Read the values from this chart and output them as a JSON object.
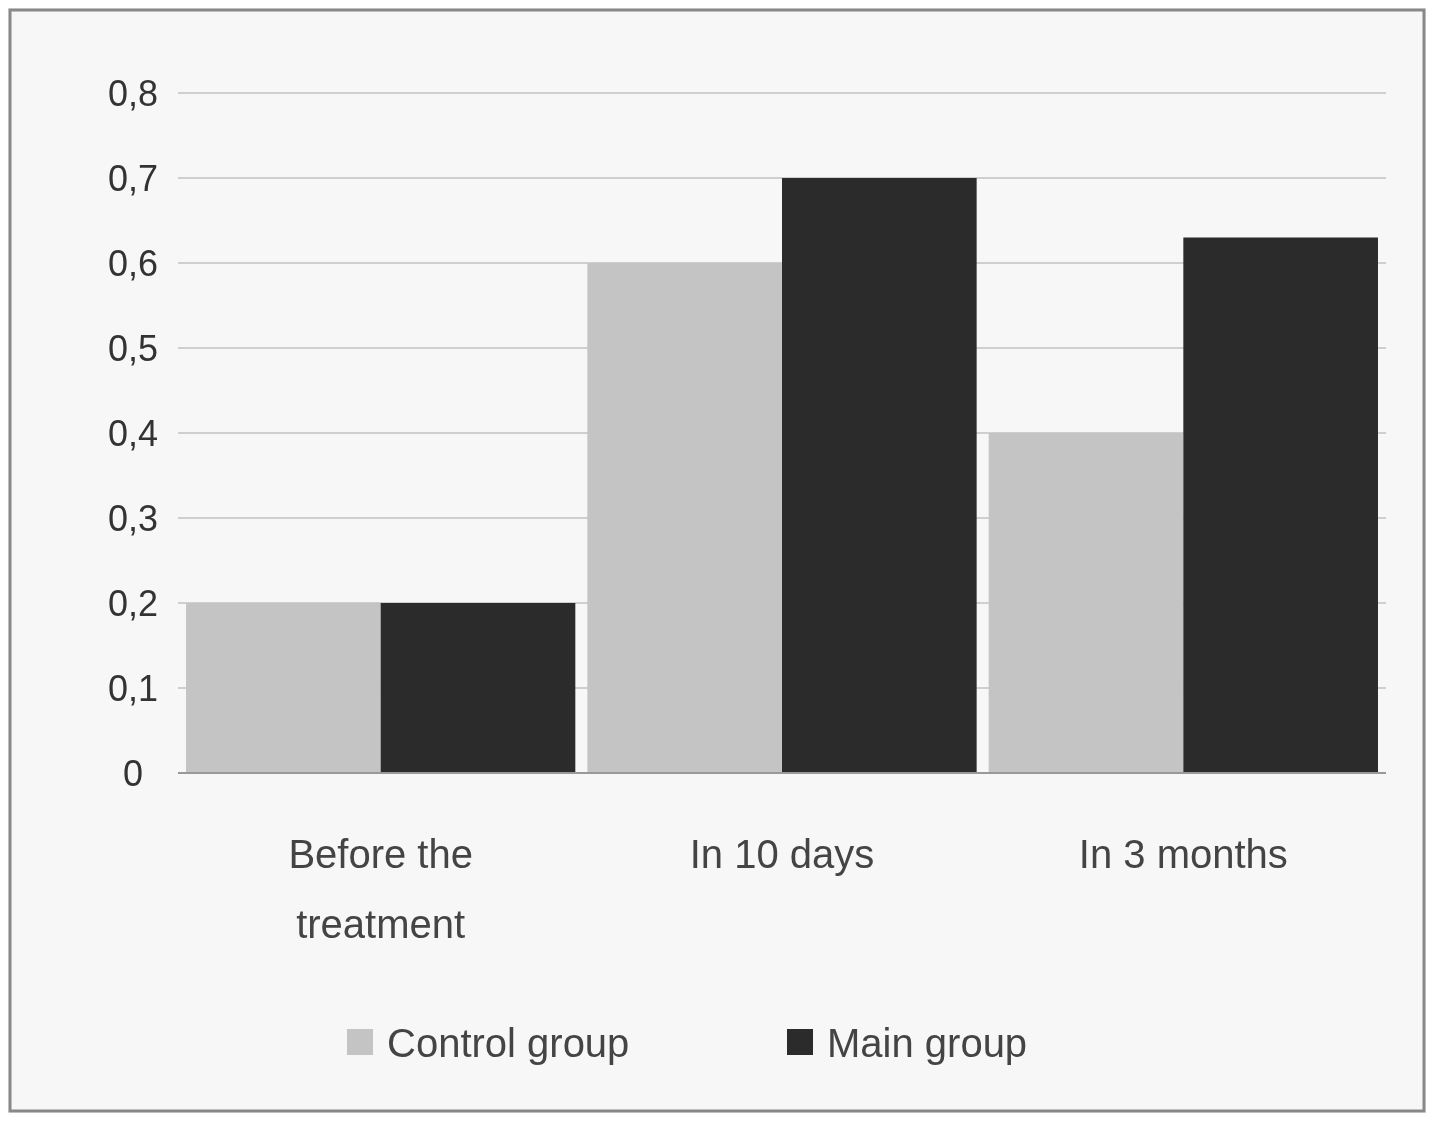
{
  "chart_data": {
    "type": "bar",
    "categories": [
      "Before the treatment",
      "In 10 days",
      "In 3 months"
    ],
    "series": [
      {
        "name": "Control group",
        "color": "#c4c4c4",
        "values": [
          0.2,
          0.6,
          0.4
        ]
      },
      {
        "name": "Main group",
        "color": "#2b2b2b",
        "values": [
          0.2,
          0.7,
          0.63
        ]
      }
    ],
    "ylim": [
      0,
      0.8
    ],
    "yticks": [
      0,
      {
        "value": 0.1,
        "label": "0,1"
      },
      {
        "value": 0.2,
        "label": "0,2"
      },
      {
        "value": 0.3,
        "label": "0,3"
      },
      {
        "value": 0.4,
        "label": "0,4"
      },
      {
        "value": 0.5,
        "label": "0,5"
      },
      {
        "value": 0.6,
        "label": "0,6"
      },
      {
        "value": 0.7,
        "label": "0,7"
      },
      {
        "value": 0.8,
        "label": "0,8"
      }
    ],
    "grid": "y",
    "legend": "bottom"
  }
}
